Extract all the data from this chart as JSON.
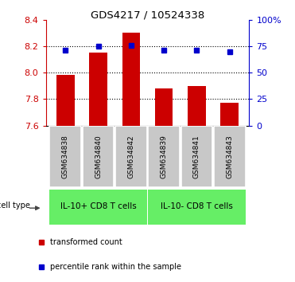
{
  "title": "GDS4217 / 10524338",
  "samples": [
    "GSM634838",
    "GSM634840",
    "GSM634842",
    "GSM634839",
    "GSM634841",
    "GSM634843"
  ],
  "bar_values": [
    7.98,
    8.15,
    8.3,
    7.88,
    7.9,
    7.77
  ],
  "percentile_values": [
    71,
    75,
    76,
    71,
    71,
    70
  ],
  "bar_color": "#cc0000",
  "dot_color": "#0000cc",
  "ylim_left": [
    7.6,
    8.4
  ],
  "ylim_right": [
    0,
    100
  ],
  "yticks_left": [
    7.6,
    7.8,
    8.0,
    8.2,
    8.4
  ],
  "yticks_right": [
    0,
    25,
    50,
    75,
    100
  ],
  "ytick_labels_right": [
    "0",
    "25",
    "50",
    "75",
    "100%"
  ],
  "group1_label": "IL-10+ CD8 T cells",
  "group2_label": "IL-10- CD8 T cells",
  "group1_indices": [
    0,
    1,
    2
  ],
  "group2_indices": [
    3,
    4,
    5
  ],
  "group_color": "#66ee66",
  "xlabel_bg_color": "#c8c8c8",
  "cell_type_label": "cell type",
  "legend_bar_label": "transformed count",
  "legend_dot_label": "percentile rank within the sample"
}
